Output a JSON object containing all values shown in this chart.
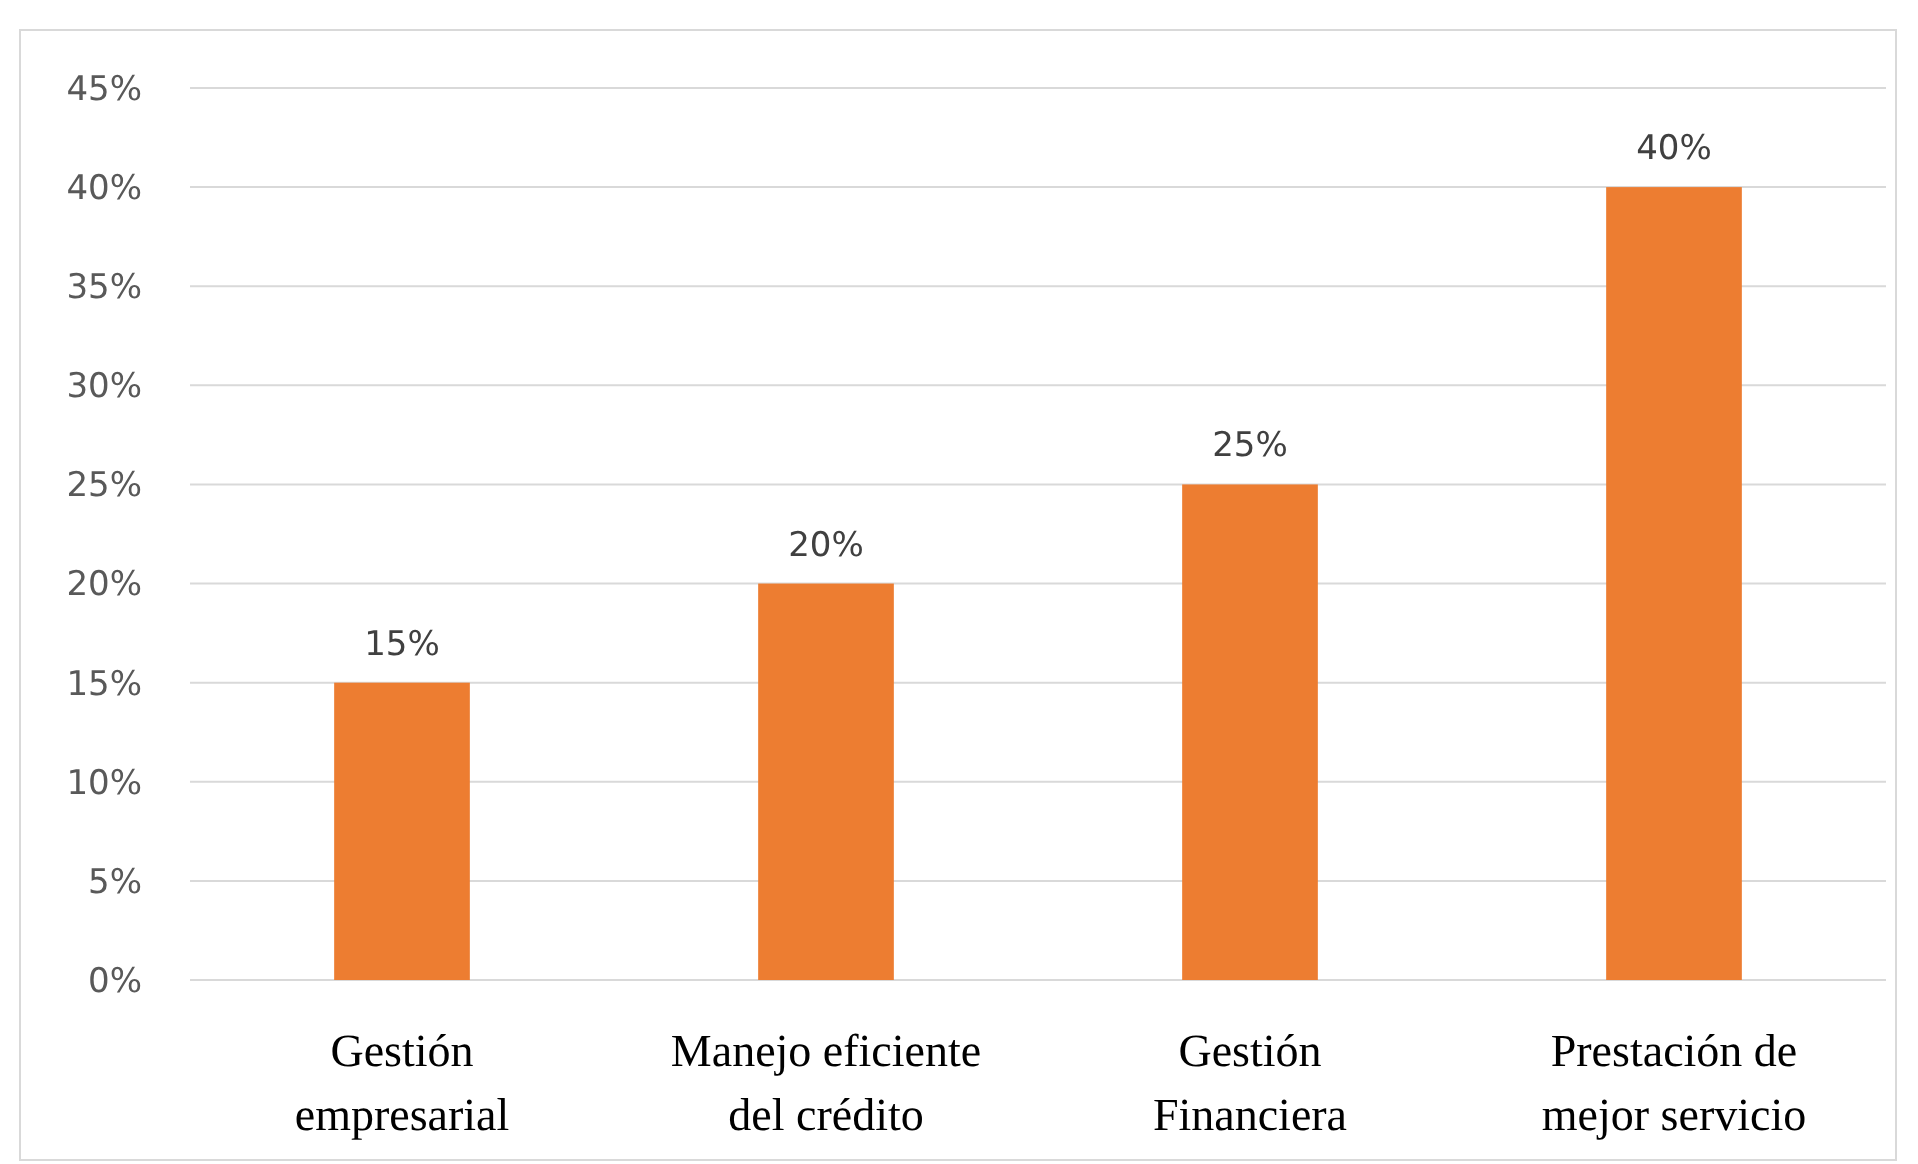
{
  "chart_data": {
    "type": "bar",
    "categories": [
      "Gestión empresarial",
      "Manejo eficiente del crédito",
      "Gestión Financiera",
      "Prestación de mejor servicio"
    ],
    "values": [
      15,
      20,
      25,
      40
    ],
    "color": "#ed7d31",
    "value_labels": [
      "15%",
      "20%",
      "25%",
      "40%"
    ],
    "ylim": [
      0,
      45
    ],
    "yticks": [
      {
        "value": 0,
        "label": "0%"
      },
      {
        "value": 5,
        "label": "5%"
      },
      {
        "value": 10,
        "label": "10%"
      },
      {
        "value": 15,
        "label": "15%"
      },
      {
        "value": 20,
        "label": "20%"
      },
      {
        "value": 25,
        "label": "25%"
      },
      {
        "value": 30,
        "label": "30%"
      },
      {
        "value": 35,
        "label": "35%"
      },
      {
        "value": 40,
        "label": "40%"
      },
      {
        "value": 45,
        "label": "45%"
      }
    ],
    "grid": "y"
  }
}
